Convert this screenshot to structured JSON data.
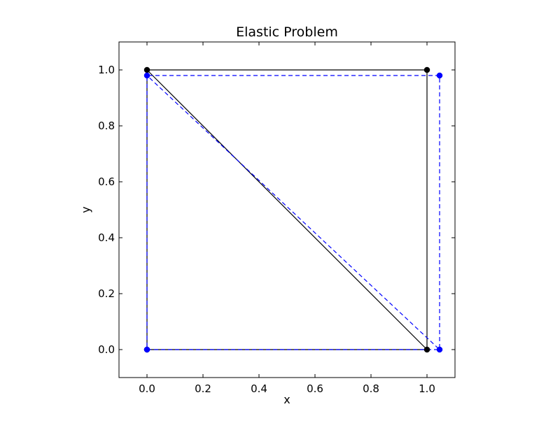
{
  "chart_data": {
    "type": "line",
    "title": "Elastic Problem",
    "xlabel": "x",
    "ylabel": "y",
    "xlim": [
      -0.1,
      1.1
    ],
    "ylim": [
      -0.1,
      1.1
    ],
    "xticks": [
      0.0,
      0.2,
      0.4,
      0.6,
      0.8,
      1.0
    ],
    "yticks": [
      0.0,
      0.2,
      0.4,
      0.6,
      0.8,
      1.0
    ],
    "xtick_labels": [
      "0.0",
      "0.2",
      "0.4",
      "0.6",
      "0.8",
      "1.0"
    ],
    "ytick_labels": [
      "0.0",
      "0.2",
      "0.4",
      "0.6",
      "0.8",
      "1.0"
    ],
    "grid": false,
    "series": [
      {
        "style": "solid",
        "color": "#000000",
        "marker": "circle",
        "points": [
          [
            0.0,
            0.0
          ],
          [
            1.0,
            0.0
          ],
          [
            1.0,
            1.0
          ],
          [
            0.0,
            1.0
          ],
          [
            0.0,
            0.0
          ],
          [
            1.0,
            0.0
          ],
          [
            0.0,
            1.0
          ]
        ]
      },
      {
        "style": "dashed",
        "color": "#0000ff",
        "marker": "circle",
        "points": [
          [
            0.0,
            0.0
          ],
          [
            1.045,
            0.0
          ],
          [
            1.045,
            0.98
          ],
          [
            0.0,
            0.98
          ],
          [
            0.0,
            0.0
          ],
          [
            1.045,
            0.0
          ],
          [
            0.0,
            0.98
          ]
        ]
      }
    ]
  }
}
